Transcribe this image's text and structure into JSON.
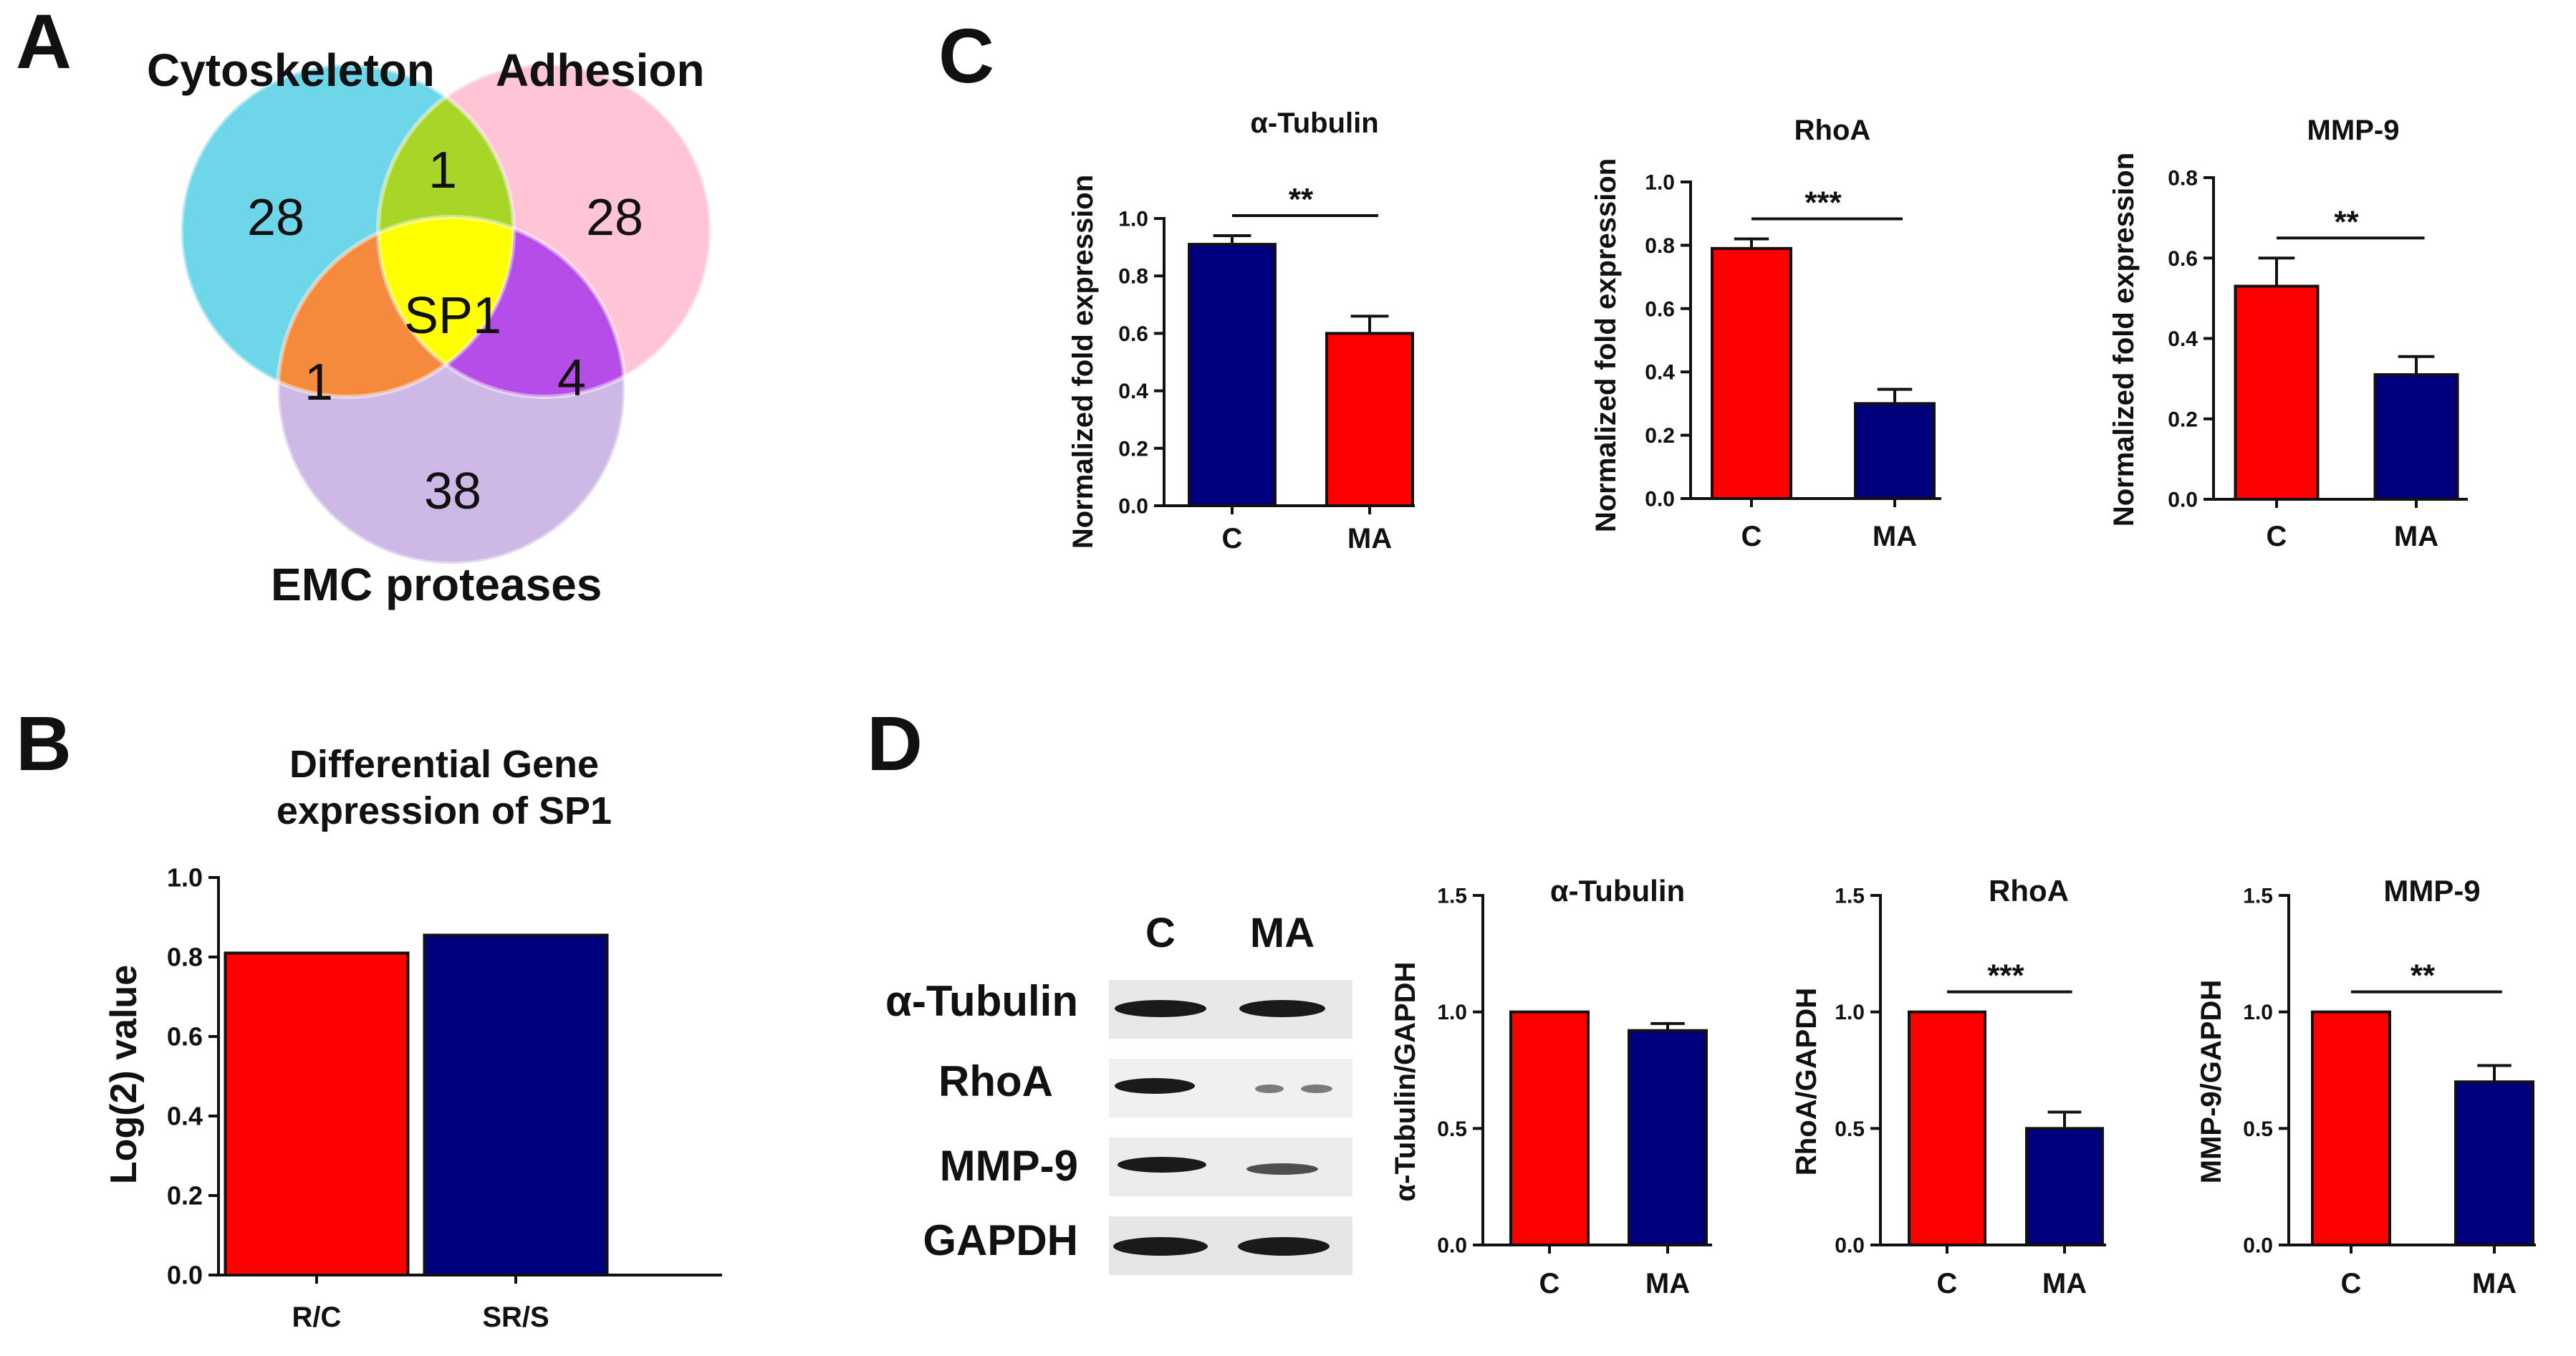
{
  "colors": {
    "red": "#ff0000",
    "navy": "#00007f",
    "cyan": "#6dd6e8",
    "pink": "#ffc4d6",
    "lavender": "#cdb8e6",
    "green": "#a8d628",
    "orange": "#f58a3c",
    "purple": "#b64de8",
    "yellow": "#ffff00"
  },
  "panels": {
    "a": "A",
    "b": "B",
    "c": "C",
    "d": "D"
  },
  "venn": {
    "cytoskeleton": "Cytoskeleton",
    "adhesion": "Adhesion",
    "emc": "EMC proteases",
    "cyto_only": "28",
    "adh_only": "28",
    "emc_only": "38",
    "cyto_adh": "1",
    "cyto_emc": "1",
    "adh_emc": "4",
    "center": "SP1"
  },
  "western_blot": {
    "lanes": [
      "C",
      "MA"
    ],
    "rows": [
      "α-Tubulin",
      "RhoA",
      "MMP-9",
      "GAPDH"
    ]
  },
  "chart_data": [
    {
      "id": "b",
      "type": "bar",
      "title": [
        "Differential Gene",
        "expression of SP1"
      ],
      "categories": [
        "R/C",
        "SR/S"
      ],
      "values": [
        0.81,
        0.855
      ],
      "errors": [
        0,
        0
      ],
      "colors": [
        "red",
        "navy"
      ],
      "ylabel": "Log(2) value",
      "ylim": [
        0,
        1.0
      ],
      "yticks": [
        "0.0",
        "0.2",
        "0.4",
        "0.6",
        "0.8",
        "1.0"
      ],
      "significance": ""
    },
    {
      "id": "c1",
      "type": "bar",
      "title": [
        "α-Tubulin"
      ],
      "categories": [
        "C",
        "MA"
      ],
      "values": [
        0.91,
        0.6
      ],
      "errors": [
        0.03,
        0.06
      ],
      "colors": [
        "navy",
        "red"
      ],
      "ylabel": "Normalized fold expression",
      "ylim": [
        0,
        1.0
      ],
      "yticks": [
        "0.0",
        "0.2",
        "0.4",
        "0.6",
        "0.8",
        "1.0"
      ],
      "significance": "**"
    },
    {
      "id": "c2",
      "type": "bar",
      "title": [
        "RhoA"
      ],
      "categories": [
        "C",
        "MA"
      ],
      "values": [
        0.79,
        0.3
      ],
      "errors": [
        0.03,
        0.045
      ],
      "colors": [
        "red",
        "navy"
      ],
      "ylabel": "Normalized fold expression",
      "ylim": [
        0,
        1.0
      ],
      "yticks": [
        "0.0",
        "0.2",
        "0.4",
        "0.6",
        "0.8",
        "1.0"
      ],
      "significance": "***"
    },
    {
      "id": "c3",
      "type": "bar",
      "title": [
        "MMP-9"
      ],
      "categories": [
        "C",
        "MA"
      ],
      "values": [
        0.53,
        0.31
      ],
      "errors": [
        0.07,
        0.045
      ],
      "colors": [
        "red",
        "navy"
      ],
      "ylabel": "Normalized fold expression",
      "ylim": [
        0,
        0.8
      ],
      "yticks": [
        "0.0",
        "0.2",
        "0.4",
        "0.6",
        "0.8"
      ],
      "significance": "**"
    },
    {
      "id": "d1",
      "type": "bar",
      "title": [
        "α-Tubulin"
      ],
      "categories": [
        "C",
        "MA"
      ],
      "values": [
        1.0,
        0.92
      ],
      "errors": [
        0,
        0.03
      ],
      "colors": [
        "red",
        "navy"
      ],
      "ylabel": "α-Tubulin/GAPDH",
      "ylim": [
        0,
        1.5
      ],
      "yticks": [
        "0.0",
        "0.5",
        "1.0",
        "1.5"
      ],
      "significance": ""
    },
    {
      "id": "d2",
      "type": "bar",
      "title": [
        "RhoA"
      ],
      "categories": [
        "C",
        "MA"
      ],
      "values": [
        1.0,
        0.5
      ],
      "errors": [
        0,
        0.07
      ],
      "colors": [
        "red",
        "navy"
      ],
      "ylabel": "RhoA/GAPDH",
      "ylim": [
        0,
        1.5
      ],
      "yticks": [
        "0.0",
        "0.5",
        "1.0",
        "1.5"
      ],
      "significance": "***"
    },
    {
      "id": "d3",
      "type": "bar",
      "title": [
        "MMP-9"
      ],
      "categories": [
        "C",
        "MA"
      ],
      "values": [
        1.0,
        0.7
      ],
      "errors": [
        0,
        0.07
      ],
      "colors": [
        "red",
        "navy"
      ],
      "ylabel": "MMP-9/GAPDH",
      "ylim": [
        0,
        1.5
      ],
      "yticks": [
        "0.0",
        "0.5",
        "1.0",
        "1.5"
      ],
      "significance": "**"
    }
  ]
}
